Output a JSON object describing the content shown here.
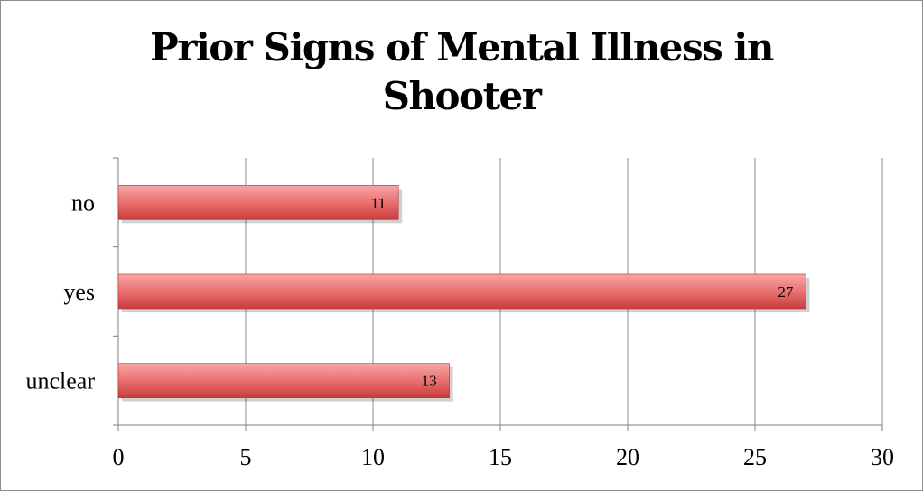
{
  "chart_data": {
    "type": "bar",
    "orientation": "horizontal",
    "title_lines": [
      "Prior Signs of Mental Illness in",
      "Shooter"
    ],
    "categories": [
      "no",
      "yes",
      "unclear"
    ],
    "values": [
      11,
      27,
      13
    ],
    "data_labels": [
      "11",
      "27",
      "13"
    ],
    "xlim": [
      0,
      30
    ],
    "x_ticks": [
      0,
      5,
      10,
      15,
      20,
      25,
      30
    ],
    "x_tick_labels": [
      "0",
      "5",
      "10",
      "15",
      "20",
      "25",
      "30"
    ],
    "grid": "vertical",
    "legend": "none",
    "colors": {
      "bar_top": "#f7a6a6",
      "bar_mid": "#e86b6b",
      "bar_bottom": "#c83c3c",
      "bar_edge": "#b03434",
      "grid": "#8c8c8c",
      "axis": "#7f7f7f"
    }
  }
}
